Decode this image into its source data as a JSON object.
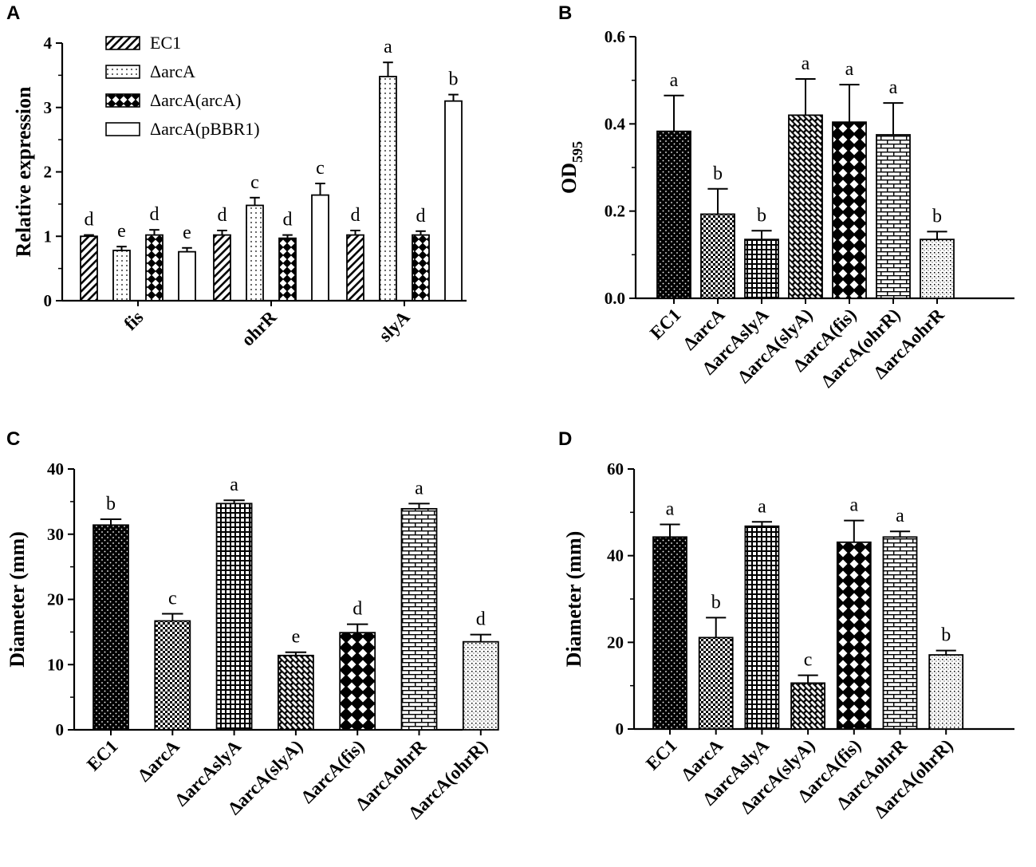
{
  "chart_data": [
    {
      "id": "A",
      "panel_label": "A",
      "type": "bar",
      "ylabel": "Relative expression",
      "ylim": [
        0,
        4
      ],
      "yticks": [
        "0",
        "1",
        "2",
        "3",
        "4"
      ],
      "categories": [
        "fis",
        "ohrR",
        "slyA"
      ],
      "legend": {
        "position": "top-left"
      },
      "series": [
        {
          "name": "EC1",
          "pattern": "diag",
          "values": [
            1.0,
            1.02,
            1.02
          ],
          "errors": [
            0.02,
            0.07,
            0.07
          ],
          "letters": [
            "d",
            "d",
            "d"
          ]
        },
        {
          "name": "ΔarcA",
          "pattern": "dots",
          "values": [
            0.78,
            1.48,
            3.48
          ],
          "errors": [
            0.06,
            0.12,
            0.22
          ],
          "letters": [
            "e",
            "c",
            "a"
          ]
        },
        {
          "name": "ΔarcA(arcA)",
          "pattern": "checkdiamond",
          "values": [
            1.02,
            0.97,
            1.02
          ],
          "errors": [
            0.08,
            0.05,
            0.06
          ],
          "letters": [
            "d",
            "d",
            "d"
          ]
        },
        {
          "name": "ΔarcA(pBBR1)",
          "pattern": "white",
          "values": [
            0.76,
            1.64,
            3.1
          ],
          "errors": [
            0.06,
            0.18,
            0.1
          ],
          "letters": [
            "e",
            "c",
            "b"
          ]
        }
      ]
    },
    {
      "id": "B",
      "panel_label": "B",
      "type": "bar",
      "ylabel_main": "OD",
      "ylabel_sub": "595",
      "ylim": [
        0,
        0.6
      ],
      "yticks": [
        "0.0",
        "0.2",
        "0.4",
        "0.6"
      ],
      "categories": [
        "EC1",
        "ΔarcA",
        "ΔarcAslyA",
        "ΔarcA(slyA)",
        "ΔarcA(fis)",
        "ΔarcA(ohrR)",
        "ΔarcAohrR"
      ],
      "values": [
        0.383,
        0.193,
        0.135,
        0.42,
        0.404,
        0.375,
        0.135
      ],
      "errors": [
        0.082,
        0.058,
        0.02,
        0.083,
        0.086,
        0.073,
        0.018
      ],
      "letters": [
        "a",
        "b",
        "b",
        "a",
        "a",
        "a",
        "b"
      ],
      "patterns": [
        "darkdots",
        "checker",
        "grid",
        "brick",
        "lattice",
        "bricklight",
        "smalldots"
      ]
    },
    {
      "id": "C",
      "panel_label": "C",
      "type": "bar",
      "ylabel": "Diameter (mm)",
      "ylim": [
        0,
        40
      ],
      "yticks": [
        "0",
        "10",
        "20",
        "30",
        "40"
      ],
      "categories": [
        "EC1",
        "ΔarcA",
        "ΔarcAslyA",
        "ΔarcA(slyA)",
        "ΔarcA(fis)",
        "ΔarcAohrR",
        "ΔarcA(ohrR)"
      ],
      "values": [
        31.4,
        16.7,
        34.7,
        11.4,
        14.9,
        33.9,
        13.5
      ],
      "errors": [
        0.9,
        1.1,
        0.5,
        0.5,
        1.3,
        0.8,
        1.1
      ],
      "letters": [
        "b",
        "c",
        "a",
        "e",
        "d",
        "a",
        "d"
      ],
      "patterns": [
        "darkdots",
        "checker",
        "grid",
        "brick",
        "lattice",
        "bricklight",
        "smalldots"
      ]
    },
    {
      "id": "D",
      "panel_label": "D",
      "type": "bar",
      "ylabel": "Diameter (mm)",
      "ylim": [
        0,
        60
      ],
      "yticks": [
        "0",
        "20",
        "40",
        "60"
      ],
      "categories": [
        "EC1",
        "ΔarcA",
        "ΔarcAslyA",
        "ΔarcA(slyA)",
        "ΔarcA(fis)",
        "ΔarcAohrR",
        "ΔarcA(ohrR)"
      ],
      "values": [
        44.3,
        21.1,
        46.8,
        10.6,
        43.1,
        44.3,
        17.1
      ],
      "errors": [
        2.9,
        4.6,
        1.0,
        1.8,
        5.0,
        1.3,
        1.0
      ],
      "letters": [
        "a",
        "b",
        "a",
        "c",
        "a",
        "a",
        "b"
      ],
      "patterns": [
        "darkdots",
        "checker",
        "grid",
        "brick",
        "lattice",
        "bricklight",
        "smalldots"
      ]
    }
  ]
}
